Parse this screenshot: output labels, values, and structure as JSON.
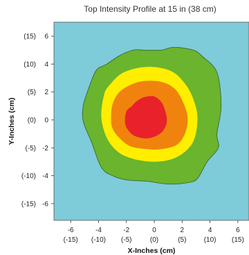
{
  "chart_data": {
    "type": "heatmap",
    "title": "Top Intensity Profile at 15 in (38 cm)",
    "xlabel": "X-Inches (cm)",
    "ylabel": "Y-Inches (cm)",
    "xlim": [
      -7.2,
      6.8
    ],
    "ylim": [
      -7.2,
      7.0
    ],
    "x_ticks": [
      {
        "value": -6,
        "label": "-6",
        "sub": "(-15)"
      },
      {
        "value": -4,
        "label": "-4",
        "sub": "(-10)"
      },
      {
        "value": -2,
        "label": "-2",
        "sub": "(-5)"
      },
      {
        "value": 0,
        "label": "0",
        "sub": "(0)"
      },
      {
        "value": 2,
        "label": "2",
        "sub": "(5)"
      },
      {
        "value": 4,
        "label": "4",
        "sub": "(10)"
      },
      {
        "value": 6,
        "label": "6",
        "sub": "(15)"
      }
    ],
    "y_ticks": [
      {
        "value": 6,
        "label": "6",
        "sub": "(15)"
      },
      {
        "value": 4,
        "label": "4",
        "sub": "(10)"
      },
      {
        "value": 2,
        "label": "2",
        "sub": "(5)"
      },
      {
        "value": 0,
        "label": "0",
        "sub": "(0)"
      },
      {
        "value": -2,
        "label": "-2",
        "sub": "(-5)"
      },
      {
        "value": -4,
        "label": "-4",
        "sub": "(-10)"
      },
      {
        "value": -6,
        "label": "-6",
        "sub": "(-15)"
      }
    ],
    "background_color": "#7ecbda",
    "contours": [
      {
        "level": 1,
        "color": "#6ab42e",
        "points": [
          [
            -4.8,
            2.0
          ],
          [
            -4.2,
            3.5
          ],
          [
            -3.6,
            3.9
          ],
          [
            -3.4,
            4.0
          ],
          [
            -2.5,
            4.6
          ],
          [
            -1.5,
            5.0
          ],
          [
            -0.8,
            5.0
          ],
          [
            0.5,
            5.0
          ],
          [
            1.4,
            5.2
          ],
          [
            2.8,
            5.0
          ],
          [
            3.5,
            4.5
          ],
          [
            4.5,
            3.4
          ],
          [
            4.8,
            1.0
          ],
          [
            4.5,
            -1.0
          ],
          [
            4.6,
            -2.0
          ],
          [
            3.8,
            -3.0
          ],
          [
            3.1,
            -4.2
          ],
          [
            2.4,
            -4.5
          ],
          [
            1.0,
            -4.6
          ],
          [
            -0.5,
            -4.4
          ],
          [
            -2.0,
            -4.3
          ],
          [
            -3.0,
            -4.0
          ],
          [
            -3.8,
            -3.4
          ],
          [
            -4.5,
            -1.6
          ],
          [
            -5.1,
            -0.1
          ],
          [
            -5.1,
            1.0
          ]
        ]
      },
      {
        "level": 2,
        "color": "#ffee00",
        "points": [
          [
            -3.8,
            0.2
          ],
          [
            -3.6,
            1.8
          ],
          [
            -3.2,
            2.5
          ],
          [
            -2.2,
            3.4
          ],
          [
            -0.5,
            3.8
          ],
          [
            1.2,
            3.5
          ],
          [
            2.2,
            2.6
          ],
          [
            2.8,
            1.5
          ],
          [
            3.1,
            0.2
          ],
          [
            2.9,
            -1.3
          ],
          [
            2.3,
            -2.2
          ],
          [
            1.3,
            -2.8
          ],
          [
            0.0,
            -3.0
          ],
          [
            -1.5,
            -2.8
          ],
          [
            -2.6,
            -2.3
          ],
          [
            -3.4,
            -1.3
          ]
        ]
      },
      {
        "level": 3,
        "color": "#f0830d",
        "points": [
          [
            -3.1,
            0.1
          ],
          [
            -3.0,
            1.1
          ],
          [
            -2.5,
            2.0
          ],
          [
            -1.5,
            2.6
          ],
          [
            -0.5,
            2.8
          ],
          [
            0.6,
            2.7
          ],
          [
            1.5,
            2.2
          ],
          [
            2.1,
            1.2
          ],
          [
            2.4,
            0.1
          ],
          [
            2.2,
            -1.0
          ],
          [
            1.6,
            -1.8
          ],
          [
            0.5,
            -2.1
          ],
          [
            -0.5,
            -2.1
          ],
          [
            -1.7,
            -1.9
          ],
          [
            -2.5,
            -1.3
          ],
          [
            -3.0,
            -0.6
          ]
        ]
      },
      {
        "level": 4,
        "color": "#e8212a",
        "points": [
          [
            -2.1,
            -0.2
          ],
          [
            -2.0,
            0.6
          ],
          [
            -1.6,
            1.0
          ],
          [
            -1.3,
            1.3
          ],
          [
            -0.8,
            1.6
          ],
          [
            -0.1,
            1.7
          ],
          [
            0.4,
            1.4
          ],
          [
            0.7,
            0.9
          ],
          [
            0.9,
            0.1
          ],
          [
            0.8,
            -0.5
          ],
          [
            0.4,
            -1.0
          ],
          [
            -0.3,
            -1.3
          ],
          [
            -0.9,
            -1.3
          ],
          [
            -1.5,
            -1.1
          ],
          [
            -1.9,
            -0.7
          ]
        ]
      }
    ]
  }
}
